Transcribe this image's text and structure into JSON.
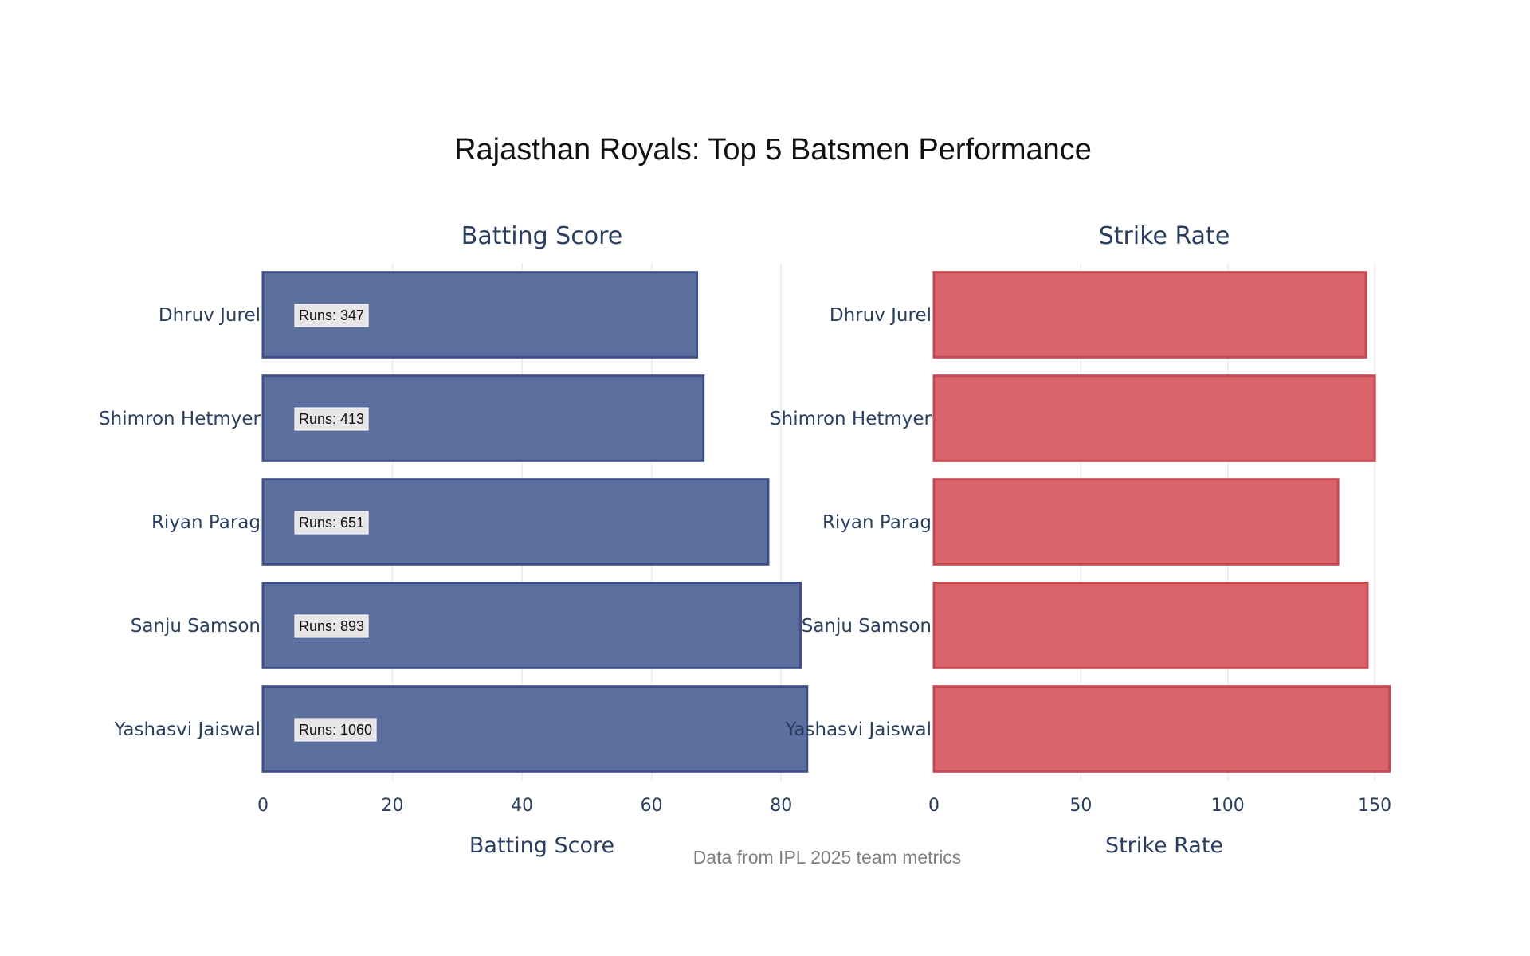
{
  "chart_data": {
    "type": "bar",
    "title": "Rajasthan Royals: Top 5 Batsmen Performance",
    "footnote": "Data from IPL 2025 team metrics",
    "categories": [
      "Dhruv Jurel",
      "Shimron Hetmyer",
      "Riyan Parag",
      "Sanju Samson",
      "Yashasvi Jaiswal"
    ],
    "panels": [
      {
        "subtitle": "Batting Score",
        "xlabel": "Batting Score",
        "orientation": "horizontal",
        "xlim": [
          0,
          86
        ],
        "ticks": [
          0,
          20,
          40,
          60,
          80
        ],
        "color": "#5c6f9e",
        "edge_color": "#3d4f86",
        "series": [
          {
            "values": [
              67,
              68,
              78,
              83,
              84
            ],
            "labels": [
              "Runs: 347",
              "Runs: 413",
              "Runs: 651",
              "Runs: 893",
              "Runs: 1060"
            ]
          }
        ]
      },
      {
        "subtitle": "Strike Rate",
        "xlabel": "Strike Rate",
        "orientation": "horizontal",
        "xlim": [
          0,
          157
        ],
        "ticks": [
          0,
          50,
          100,
          150
        ],
        "color": "#d9646c",
        "edge_color": "#c84750",
        "series": [
          {
            "values": [
              147,
              150,
              137.5,
              147.5,
              155
            ]
          }
        ]
      }
    ],
    "grid": true,
    "legend": "none"
  }
}
